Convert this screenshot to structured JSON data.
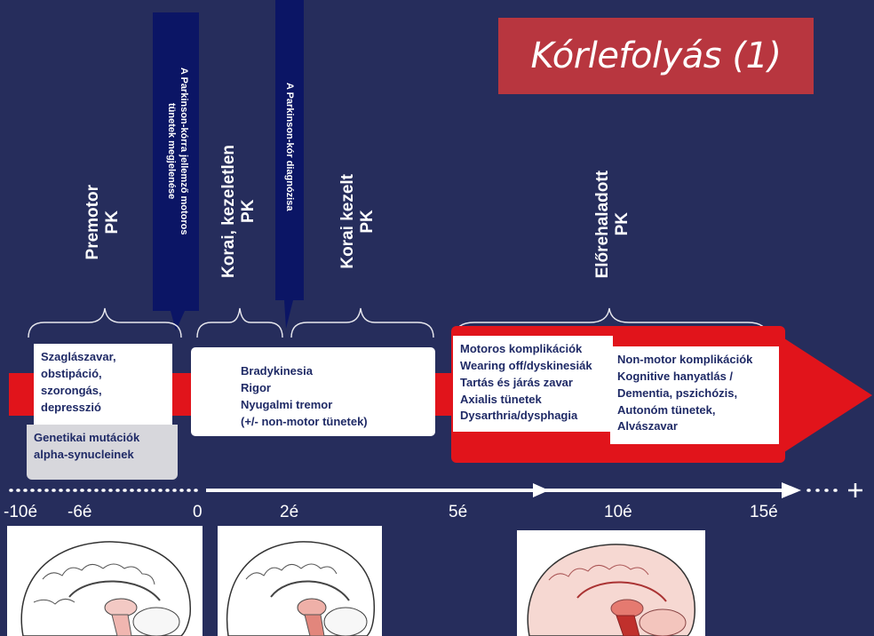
{
  "slide": {
    "title": "Kórlefolyás (1)",
    "colors": {
      "background": "#262d5c",
      "accent_red": "#e1141b",
      "title_bg": "#b8363f",
      "banner_navy": "#0b1565",
      "text_navy": "#1f2a66"
    }
  },
  "banners": [
    {
      "text_lines": [
        "A Parkinson-kórra jellemző motoros",
        "tünetek megjelenése"
      ]
    },
    {
      "text_lines": [
        "A Parkinson-kór diagnózisa"
      ]
    }
  ],
  "phases": [
    {
      "line1": "Premotor",
      "line2": "PK"
    },
    {
      "line1": "Korai, kezeletlen",
      "line2": "PK"
    },
    {
      "line1": "Korai kezelt",
      "line2": "PK"
    },
    {
      "line1": "Előrehaladott",
      "line2": "PK"
    }
  ],
  "boxes": {
    "premotor_symptoms": [
      "Szaglászavar,",
      "obstipáció,",
      "szorongás,",
      "depresszió"
    ],
    "genetic": [
      "Genetikai mutációk",
      "alpha-synucleinek"
    ],
    "early_symptoms": [
      "Bradykinesia",
      "Rigor",
      "Nyugalmi tremor",
      "(+/- non-motor tünetek)"
    ],
    "motor_complications": [
      "Motoros komplikációk",
      "Wearing off/dyskinesiák",
      "Tartás és járás zavar",
      "Axialis tünetek",
      "Dysarthria/dysphagia"
    ],
    "nonmotor_complications": [
      "Non-motor komplikációk",
      "Kognitive hanyatlás /",
      "Dementia, pszichózis,",
      "Autonóm tünetek,",
      "Alvászavar"
    ]
  },
  "timeline": {
    "ticks": [
      "-10é",
      "-6é",
      "0",
      "2é",
      "5é",
      "10é",
      "15é"
    ],
    "end_symbol": "+"
  },
  "images": [
    {
      "icon": "brain-sagittal-healthy-icon"
    },
    {
      "icon": "brain-sagittal-early-icon"
    },
    {
      "icon": "brain-sagittal-advanced-icon"
    }
  ]
}
